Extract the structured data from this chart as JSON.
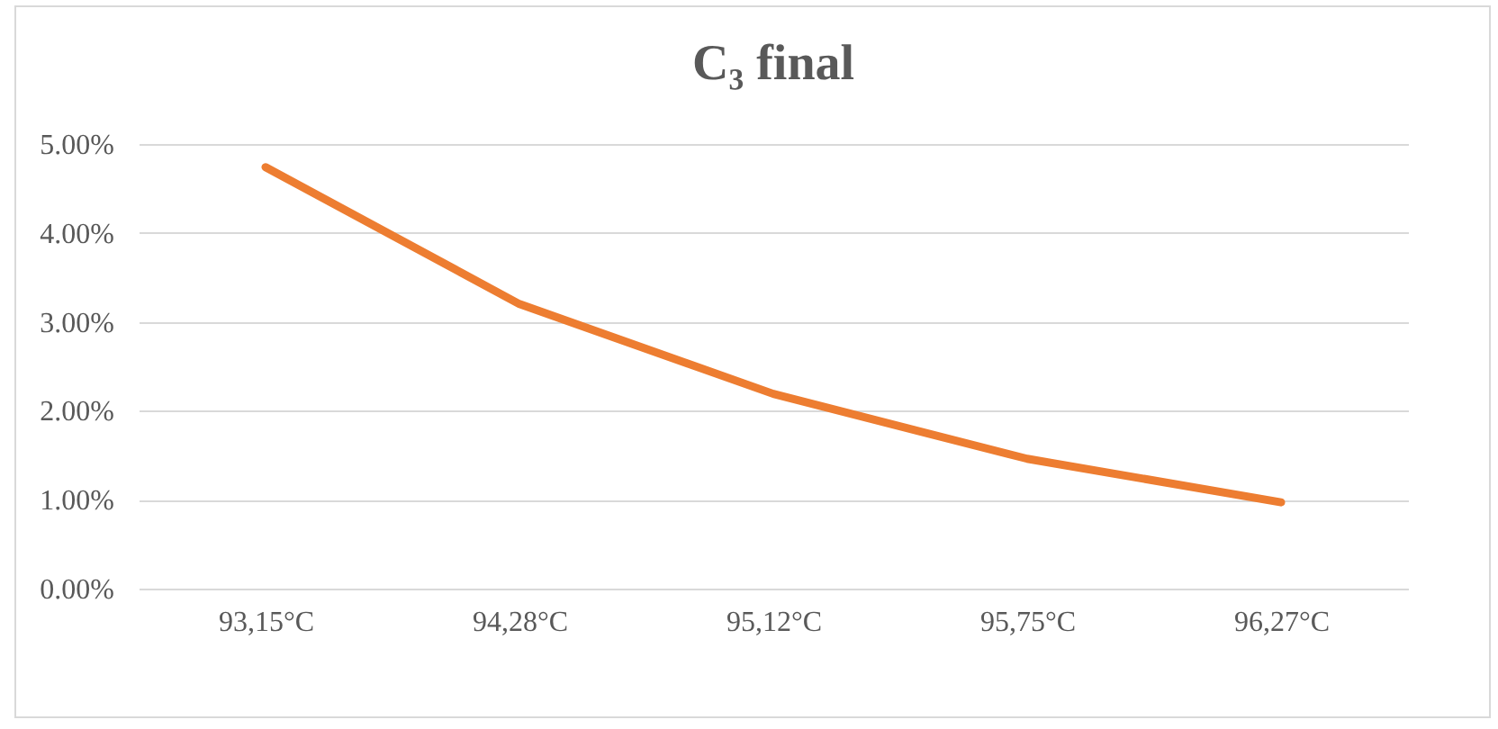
{
  "chart_data": {
    "type": "line",
    "title": "C₃ final",
    "categories": [
      "93,15°C",
      "94,28°C",
      "95,12°C",
      "95,75°C",
      "96,27°C"
    ],
    "series": [
      {
        "color": "#ed7d31",
        "values": [
          4.74,
          3.2,
          2.19,
          1.46,
          0.97
        ]
      }
    ],
    "ylim": [
      0,
      5
    ],
    "yticks": [
      {
        "value": 0,
        "label": "0.00%"
      },
      {
        "value": 1,
        "label": "1.00%"
      },
      {
        "value": 2,
        "label": "2.00%"
      },
      {
        "value": 3,
        "label": "3.00%"
      },
      {
        "value": 4,
        "label": "4.00%"
      },
      {
        "value": 5,
        "label": "5.00%"
      }
    ],
    "grid": "y",
    "marker": "none",
    "line_style": "solid"
  }
}
